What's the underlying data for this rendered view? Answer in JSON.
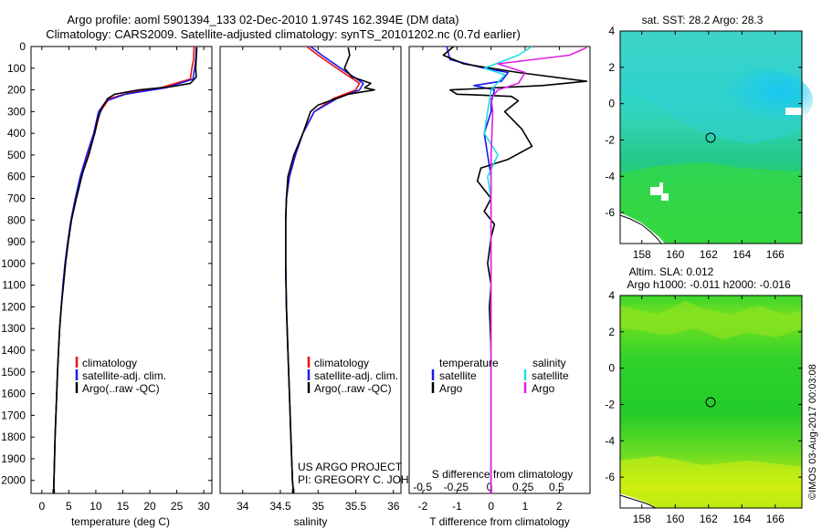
{
  "header": {
    "line1": "Argo profile: aoml 5901394_133 02-Dec-2010 1.974S 162.394E (DM data)",
    "line2": "Climatology: CARS2009. Satellite-adjusted climatology: synTS_20101202.nc (0.7d earlier)"
  },
  "depth_ticks": [
    0,
    100,
    200,
    300,
    400,
    500,
    600,
    700,
    800,
    900,
    1000,
    1100,
    1200,
    1300,
    1400,
    1500,
    1600,
    1700,
    1800,
    1900,
    2000
  ],
  "colors": {
    "climatology": "#ee1111",
    "satellite": "#1a1aee",
    "argo": "#000000",
    "sal_satellite": "#22dde6",
    "sal_argo": "#e020e0"
  },
  "chart_data": [
    {
      "id": "temperature",
      "type": "line",
      "xlabel": "temperature (deg C)",
      "xlim": [
        -2,
        31.5
      ],
      "ylim": [
        2060,
        0
      ],
      "xticks": [
        0,
        5,
        10,
        15,
        20,
        25,
        30
      ],
      "xtick_labels": [
        "0",
        "5",
        "10",
        "15",
        "20",
        "25",
        "30"
      ],
      "legend": [
        "climatology",
        "satellite-adj. clim.",
        "Argo(..raw -QC)"
      ],
      "series": [
        {
          "name": "climatology",
          "color": "#ee1111",
          "points": [
            [
              28.2,
              0
            ],
            [
              28.1,
              60
            ],
            [
              27.8,
              100
            ],
            [
              27.5,
              150
            ],
            [
              22,
              190
            ],
            [
              16,
              215
            ],
            [
              12.5,
              240
            ],
            [
              10.8,
              300
            ],
            [
              9.8,
              400
            ],
            [
              8.5,
              500
            ],
            [
              7.2,
              600
            ],
            [
              6.2,
              700
            ],
            [
              5.4,
              800
            ],
            [
              4.8,
              900
            ],
            [
              4.3,
              1000
            ],
            [
              3.9,
              1100
            ],
            [
              3.6,
              1200
            ],
            [
              3.3,
              1300
            ],
            [
              3.1,
              1400
            ],
            [
              2.9,
              1500
            ],
            [
              2.75,
              1600
            ],
            [
              2.6,
              1700
            ],
            [
              2.45,
              1800
            ],
            [
              2.35,
              1900
            ],
            [
              2.25,
              2000
            ],
            [
              2.2,
              2040
            ]
          ]
        },
        {
          "name": "satellite",
          "color": "#1a1aee",
          "points": [
            [
              28.6,
              0
            ],
            [
              28.5,
              60
            ],
            [
              28.3,
              100
            ],
            [
              28.0,
              150
            ],
            [
              23,
              190
            ],
            [
              15.5,
              220
            ],
            [
              12,
              250
            ],
            [
              10.5,
              300
            ],
            [
              9.6,
              400
            ],
            [
              8.3,
              500
            ],
            [
              7.1,
              600
            ],
            [
              6.2,
              700
            ],
            [
              5.4,
              800
            ],
            [
              4.8,
              900
            ],
            [
              4.3,
              1000
            ],
            [
              3.9,
              1100
            ],
            [
              3.6,
              1200
            ],
            [
              3.3,
              1300
            ],
            [
              3.1,
              1400
            ],
            [
              2.9,
              1500
            ],
            [
              2.75,
              1600
            ],
            [
              2.6,
              1700
            ],
            [
              2.45,
              1800
            ],
            [
              2.35,
              1900
            ],
            [
              2.25,
              2000
            ],
            [
              2.2,
              2040
            ]
          ]
        },
        {
          "name": "argo",
          "color": "#000000",
          "points": [
            [
              28.7,
              5
            ],
            [
              28.6,
              50
            ],
            [
              28.5,
              100
            ],
            [
              28.6,
              140
            ],
            [
              27.5,
              170
            ],
            [
              24,
              185
            ],
            [
              18,
              200
            ],
            [
              13.5,
              220
            ],
            [
              12.2,
              240
            ],
            [
              11.2,
              280
            ],
            [
              10.4,
              330
            ],
            [
              9.8,
              400
            ],
            [
              8.7,
              500
            ],
            [
              7.6,
              580
            ],
            [
              6.4,
              700
            ],
            [
              5.5,
              800
            ],
            [
              4.9,
              900
            ],
            [
              4.4,
              1000
            ],
            [
              4.0,
              1100
            ],
            [
              3.6,
              1200
            ],
            [
              3.3,
              1300
            ],
            [
              3.1,
              1400
            ],
            [
              2.9,
              1500
            ],
            [
              2.75,
              1600
            ],
            [
              2.6,
              1700
            ],
            [
              2.45,
              1800
            ],
            [
              2.35,
              1900
            ],
            [
              2.25,
              2000
            ],
            [
              2.2,
              2040
            ]
          ]
        }
      ]
    },
    {
      "id": "salinity",
      "type": "line",
      "xlabel": "salinity",
      "xlim": [
        33.7,
        36.1
      ],
      "ylim": [
        2060,
        0
      ],
      "xticks": [
        34,
        34.5,
        35,
        35.5,
        36
      ],
      "xtick_labels": [
        "34",
        "34.5",
        "35",
        "35.5",
        "36"
      ],
      "legend": [
        "climatology",
        "satellite-adj. clim.",
        "Argo(..raw -QC)"
      ],
      "credit": [
        "US ARGO PROJECT",
        "PI: GREGORY C. JOHNSON"
      ],
      "series": [
        {
          "name": "climatology",
          "color": "#ee1111",
          "points": [
            [
              34.85,
              0
            ],
            [
              35.0,
              40
            ],
            [
              35.25,
              100
            ],
            [
              35.55,
              170
            ],
            [
              35.5,
              200
            ],
            [
              35.2,
              240
            ],
            [
              34.95,
              300
            ],
            [
              34.8,
              400
            ],
            [
              34.7,
              500
            ],
            [
              34.62,
              600
            ],
            [
              34.58,
              700
            ],
            [
              34.57,
              800
            ],
            [
              34.57,
              1000
            ],
            [
              34.58,
              1200
            ],
            [
              34.6,
              1400
            ],
            [
              34.62,
              1600
            ],
            [
              34.64,
              1800
            ],
            [
              34.66,
              2000
            ],
            [
              34.67,
              2040
            ]
          ]
        },
        {
          "name": "satellite",
          "color": "#1a1aee",
          "points": [
            [
              34.9,
              0
            ],
            [
              35.05,
              40
            ],
            [
              35.3,
              100
            ],
            [
              35.6,
              170
            ],
            [
              35.55,
              200
            ],
            [
              35.25,
              240
            ],
            [
              34.95,
              300
            ],
            [
              34.8,
              400
            ],
            [
              34.7,
              500
            ],
            [
              34.62,
              600
            ],
            [
              34.58,
              700
            ],
            [
              34.57,
              800
            ],
            [
              34.57,
              1000
            ],
            [
              34.58,
              1200
            ],
            [
              34.6,
              1400
            ],
            [
              34.62,
              1600
            ],
            [
              34.64,
              1800
            ],
            [
              34.66,
              2000
            ],
            [
              34.67,
              2040
            ]
          ]
        },
        {
          "name": "argo",
          "color": "#000000",
          "points": [
            [
              35.4,
              5
            ],
            [
              35.42,
              40
            ],
            [
              35.35,
              100
            ],
            [
              35.45,
              140
            ],
            [
              35.7,
              170
            ],
            [
              35.62,
              190
            ],
            [
              35.75,
              200
            ],
            [
              35.4,
              220
            ],
            [
              35.0,
              270
            ],
            [
              34.9,
              300
            ],
            [
              34.8,
              400
            ],
            [
              34.68,
              500
            ],
            [
              34.6,
              600
            ],
            [
              34.58,
              700
            ],
            [
              34.57,
              800
            ],
            [
              34.57,
              1000
            ],
            [
              34.58,
              1200
            ],
            [
              34.6,
              1400
            ],
            [
              34.62,
              1600
            ],
            [
              34.64,
              1800
            ],
            [
              34.66,
              2000
            ],
            [
              34.67,
              2040
            ]
          ]
        }
      ]
    },
    {
      "id": "difference",
      "type": "line",
      "xlabel": "T difference from climatology",
      "xlabel2": "S difference from climatology",
      "xlim": [
        -2.4,
        2.9
      ],
      "ylim": [
        2060,
        0
      ],
      "xticks": [
        -2,
        -1,
        0,
        1,
        2
      ],
      "xtick_labels": [
        "-2",
        "-1",
        "0",
        "1",
        "2"
      ],
      "xticks_s": [
        -0.5,
        -0.25,
        0,
        0.25,
        0.5
      ],
      "xtick_labels_s": [
        "-0.5",
        "-0.25",
        "0",
        "0.25",
        "0.5"
      ],
      "legend_titles": [
        "temperature",
        "salinity"
      ],
      "legend": [
        "satellite",
        "Argo",
        "satellite",
        "Argo"
      ],
      "series": [
        {
          "name": "T satellite",
          "color": "#1a1aee",
          "points": [
            [
              -1.3,
              0
            ],
            [
              -1.2,
              60
            ],
            [
              -0.2,
              100
            ],
            [
              0.5,
              120
            ],
            [
              0.3,
              160
            ],
            [
              -0.5,
              180
            ],
            [
              0.1,
              200
            ],
            [
              0.0,
              260
            ],
            [
              0.0,
              300
            ],
            [
              -0.2,
              400
            ],
            [
              -0.1,
              500
            ],
            [
              0.0,
              600
            ],
            [
              0.0,
              700
            ],
            [
              0.0,
              800
            ],
            [
              0.0,
              2040
            ]
          ]
        },
        {
          "name": "T argo",
          "color": "#000000",
          "points": [
            [
              -1.1,
              0
            ],
            [
              -1.4,
              40
            ],
            [
              -0.8,
              80
            ],
            [
              0.8,
              120
            ],
            [
              2.8,
              160
            ],
            [
              1.5,
              180
            ],
            [
              -1.2,
              200
            ],
            [
              -1.0,
              220
            ],
            [
              0.6,
              230
            ],
            [
              0.8,
              250
            ],
            [
              0.4,
              300
            ],
            [
              0.9,
              380
            ],
            [
              1.2,
              460
            ],
            [
              0.5,
              520
            ],
            [
              -0.3,
              560
            ],
            [
              -0.4,
              620
            ],
            [
              0.0,
              700
            ],
            [
              -0.2,
              760
            ],
            [
              0.1,
              820
            ],
            [
              0.0,
              880
            ],
            [
              -0.1,
              1000
            ],
            [
              0.0,
              1100
            ],
            [
              -0.05,
              1200
            ],
            [
              0.0,
              1400
            ],
            [
              0.0,
              2040
            ]
          ]
        },
        {
          "name": "S satellite",
          "color": "#22dde6",
          "points": [
            [
              1.2,
              0
            ],
            [
              0.8,
              40
            ],
            [
              -0.2,
              100
            ],
            [
              0.4,
              130
            ],
            [
              0.0,
              200
            ],
            [
              -0.1,
              300
            ],
            [
              -0.2,
              400
            ],
            [
              0.2,
              500
            ],
            [
              -0.1,
              600
            ],
            [
              0.0,
              700
            ],
            [
              0.0,
              2040
            ]
          ]
        },
        {
          "name": "S argo",
          "color": "#e020e0",
          "points": [
            [
              2.8,
              5
            ],
            [
              2.3,
              40
            ],
            [
              0.2,
              80
            ],
            [
              1.0,
              120
            ],
            [
              0.8,
              170
            ],
            [
              0.2,
              200
            ],
            [
              0.0,
              240
            ],
            [
              0.05,
              300
            ],
            [
              0.0,
              500
            ],
            [
              0.0,
              2040
            ]
          ]
        }
      ]
    }
  ],
  "maps": {
    "sst": {
      "title": "sat. SST: 28.2 Argo: 28.3",
      "xticks": [
        "158",
        "160",
        "162",
        "164",
        "166"
      ],
      "yticks": [
        "4",
        "2",
        "0",
        "-2",
        "-4",
        "-6"
      ]
    },
    "sla": {
      "title1": "Altim. SLA: 0.012",
      "title2": "Argo h1000: -0.011 h2000: -0.016",
      "xticks": [
        "158",
        "160",
        "162",
        "164",
        "166"
      ],
      "yticks": [
        "4",
        "2",
        "0",
        "-2",
        "-4",
        "-6"
      ]
    }
  },
  "footer": {
    "credit": "©IMOS 03-Aug-2017 00:03:08"
  }
}
